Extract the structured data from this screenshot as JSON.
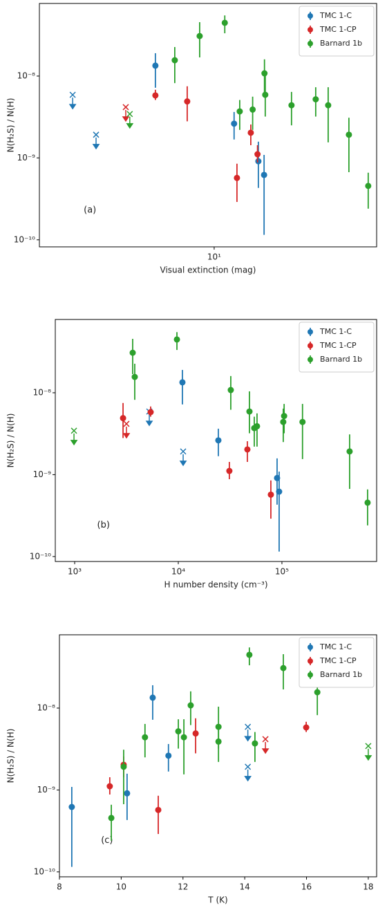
{
  "chart_data": [
    {
      "type": "scatter",
      "annotation": "(a)",
      "xlabel": "Visual extinction (mag)",
      "ylabel": "N(H₂S) / N(H)",
      "xscale": "log",
      "yscale": "log",
      "xlim": [
        1,
        85
      ],
      "ylim": [
        8.2e-11,
        7.7e-08
      ],
      "xticks": [
        {
          "value": 10,
          "label": "10¹"
        }
      ],
      "yticks": [
        {
          "value": 1e-10,
          "label": "10⁻¹⁰"
        },
        {
          "value": 1e-09,
          "label": "10⁻⁹"
        },
        {
          "value": 1e-08,
          "label": "10⁻⁸"
        }
      ],
      "legend": "upper right",
      "series": [
        {
          "name": "TMC 1-C",
          "color": "#1f77b4",
          "x": [
            1.55,
            2.11,
            4.61,
            13.0,
            17.9,
            19.3
          ],
          "values": [
            5.9e-09,
            1.92e-09,
            1.34e-08,
            2.62e-09,
            9.1e-10,
            6.2e-10
          ],
          "low": [
            null,
            null,
            7.2e-09,
            1.68e-09,
            4.3e-10,
            1.15e-10
          ],
          "high": [
            null,
            null,
            1.9e-08,
            3.64e-09,
            1.58e-09,
            1.09e-09
          ],
          "limit": [
            true,
            true,
            false,
            false,
            false,
            false
          ]
        },
        {
          "name": "TMC 1-CP",
          "color": "#d62728",
          "x": [
            3.12,
            4.61,
            7.01,
            13.5,
            16.2,
            17.7
          ],
          "values": [
            4.17e-09,
            5.8e-09,
            4.9e-09,
            5.7e-10,
            2.03e-09,
            1.11e-09
          ],
          "low": [
            null,
            5.1e-09,
            2.8e-09,
            2.9e-10,
            1.43e-09,
            8.8e-10
          ],
          "high": [
            null,
            6.8e-09,
            7.5e-09,
            8.5e-10,
            2.56e-09,
            1.43e-09
          ],
          "limit": [
            true,
            false,
            false,
            false,
            false,
            false
          ]
        },
        {
          "name": "Barnard 1b",
          "color": "#2ca02c",
          "x": [
            3.29,
            5.95,
            8.26,
            11.5,
            14.0,
            16.6,
            19.4,
            19.6,
            27.7,
            38.1,
            44.9,
            59.0,
            76.1
          ],
          "values": [
            3.44e-09,
            1.56e-08,
            3.08e-08,
            4.47e-08,
            3.7e-09,
            3.9e-09,
            1.08e-08,
            5.9e-09,
            4.4e-09,
            5.2e-09,
            4.4e-09,
            1.92e-09,
            4.55e-10
          ],
          "low": [
            null,
            8.2e-09,
            1.69e-08,
            3.33e-08,
            2.2e-09,
            2.2e-09,
            6.2e-09,
            3.2e-09,
            2.5e-09,
            3.2e-09,
            1.55e-09,
            6.7e-10,
            2.4e-10
          ],
          "high": [
            null,
            2.26e-08,
            4.55e-08,
            5.5e-08,
            5.1e-09,
            5.6e-09,
            1.6e-08,
            1.04e-08,
            6.4e-09,
            7.3e-09,
            7.3e-09,
            3.1e-09,
            6.6e-10
          ],
          "limit": [
            true,
            false,
            false,
            false,
            false,
            false,
            false,
            false,
            false,
            false,
            false,
            false,
            false
          ]
        }
      ]
    },
    {
      "type": "scatter",
      "annotation": "(b)",
      "xlabel": "H number density (cm⁻³)",
      "ylabel": "N(H₂S) / N(H)",
      "xscale": "log",
      "yscale": "log",
      "xlim": [
        650,
        820000
      ],
      "ylim": [
        8.7e-11,
        7.85e-08
      ],
      "xticks": [
        {
          "value": 1000,
          "label": "10³"
        },
        {
          "value": 10000,
          "label": "10⁴"
        },
        {
          "value": 100000,
          "label": "10⁵"
        }
      ],
      "yticks": [
        {
          "value": 1e-10,
          "label": "10⁻¹⁰"
        },
        {
          "value": 1e-09,
          "label": "10⁻⁹"
        },
        {
          "value": 1e-08,
          "label": "10⁻⁸"
        }
      ],
      "legend": "upper right",
      "series": [
        {
          "name": "TMC 1-C",
          "color": "#1f77b4",
          "x": [
            5250,
            11140,
            10960,
            24350,
            89800,
            94000
          ],
          "values": [
            5.9e-09,
            1.92e-09,
            1.34e-08,
            2.62e-09,
            9.1e-10,
            6.2e-10
          ],
          "low": [
            null,
            null,
            7.2e-09,
            1.68e-09,
            4.3e-10,
            1.15e-10
          ],
          "high": [
            null,
            null,
            1.9e-08,
            3.64e-09,
            1.58e-09,
            1.09e-09
          ],
          "limit": [
            true,
            true,
            false,
            false,
            false,
            false
          ]
        },
        {
          "name": "TMC 1-CP",
          "color": "#d62728",
          "x": [
            3160,
            5410,
            2930,
            78200,
            46400,
            31100
          ],
          "values": [
            4.17e-09,
            5.8e-09,
            4.9e-09,
            5.7e-10,
            2.03e-09,
            1.11e-09
          ],
          "low": [
            null,
            5.1e-09,
            2.8e-09,
            2.9e-10,
            1.43e-09,
            8.8e-10
          ],
          "high": [
            null,
            6.8e-09,
            7.5e-09,
            8.5e-10,
            2.56e-09,
            1.43e-09
          ],
          "limit": [
            true,
            false,
            false,
            false,
            false,
            false
          ]
        },
        {
          "name": "Barnard 1b",
          "color": "#2ca02c",
          "x": [
            985,
            3800,
            3630,
            9700,
            54100,
            57500,
            32100,
            48600,
            103000,
            105000,
            158000,
            450000,
            671000
          ],
          "values": [
            3.44e-09,
            1.56e-08,
            3.08e-08,
            4.47e-08,
            3.7e-09,
            3.9e-09,
            1.08e-08,
            5.9e-09,
            4.4e-09,
            5.2e-09,
            4.4e-09,
            1.92e-09,
            4.55e-10
          ],
          "low": [
            null,
            8.2e-09,
            1.69e-08,
            3.33e-08,
            2.2e-09,
            2.2e-09,
            6.2e-09,
            3.2e-09,
            2.5e-09,
            3.2e-09,
            1.55e-09,
            6.7e-10,
            2.4e-10
          ],
          "high": [
            null,
            2.26e-08,
            4.55e-08,
            5.5e-08,
            5.1e-09,
            5.6e-09,
            1.6e-08,
            1.04e-08,
            6.4e-09,
            7.3e-09,
            7.3e-09,
            3.1e-09,
            6.6e-10
          ],
          "limit": [
            true,
            false,
            false,
            false,
            false,
            false,
            false,
            false,
            false,
            false,
            false,
            false,
            false
          ]
        }
      ]
    },
    {
      "type": "scatter",
      "annotation": "(c)",
      "xlabel": "T (K)",
      "ylabel": "N(H₂S) / N(H)",
      "xscale": "linear",
      "yscale": "log",
      "xlim": [
        8,
        18.27
      ],
      "ylim": [
        8.7e-11,
        7.85e-08
      ],
      "xticks": [
        8,
        10,
        12,
        14,
        16,
        18
      ],
      "yticks": [
        {
          "value": 1e-10,
          "label": "10⁻¹⁰"
        },
        {
          "value": 1e-09,
          "label": "10⁻⁹"
        },
        {
          "value": 1e-08,
          "label": "10⁻⁸"
        }
      ],
      "legend": "upper right",
      "series": [
        {
          "name": "TMC 1-C",
          "color": "#1f77b4",
          "x": [
            14.1,
            14.1,
            11.02,
            11.53,
            10.19,
            8.4
          ],
          "values": [
            5.9e-09,
            1.92e-09,
            1.34e-08,
            2.62e-09,
            9.1e-10,
            6.2e-10
          ],
          "low": [
            null,
            null,
            7.2e-09,
            1.68e-09,
            4.3e-10,
            1.15e-10
          ],
          "high": [
            null,
            null,
            1.9e-08,
            3.64e-09,
            1.58e-09,
            1.09e-09
          ],
          "limit": [
            true,
            true,
            false,
            false,
            false,
            false
          ]
        },
        {
          "name": "TMC 1-CP",
          "color": "#d62728",
          "x": [
            14.67,
            15.99,
            12.41,
            11.2,
            10.08,
            9.63
          ],
          "values": [
            4.17e-09,
            5.8e-09,
            4.9e-09,
            5.7e-10,
            2.03e-09,
            1.11e-09
          ],
          "low": [
            null,
            5.1e-09,
            2.8e-09,
            2.9e-10,
            1.43e-09,
            8.8e-10
          ],
          "high": [
            null,
            6.8e-09,
            7.5e-09,
            8.5e-10,
            2.56e-09,
            1.43e-09
          ],
          "limit": [
            true,
            false,
            false,
            false,
            false,
            false
          ]
        },
        {
          "name": "Barnard 1b",
          "color": "#2ca02c",
          "x": [
            18.0,
            16.35,
            15.25,
            14.15,
            14.33,
            13.15,
            12.25,
            13.15,
            10.77,
            11.85,
            12.03,
            10.08,
            9.68
          ],
          "values": [
            3.44e-09,
            1.56e-08,
            3.08e-08,
            4.47e-08,
            3.7e-09,
            3.9e-09,
            1.08e-08,
            5.9e-09,
            4.4e-09,
            5.2e-09,
            4.4e-09,
            1.92e-09,
            4.55e-10
          ],
          "low": [
            null,
            8.2e-09,
            1.69e-08,
            3.33e-08,
            2.2e-09,
            2.2e-09,
            6.2e-09,
            3.2e-09,
            2.5e-09,
            3.2e-09,
            1.55e-09,
            6.7e-10,
            2.4e-10
          ],
          "high": [
            null,
            2.26e-08,
            4.55e-08,
            5.5e-08,
            5.1e-09,
            5.6e-09,
            1.6e-08,
            1.04e-08,
            6.4e-09,
            7.3e-09,
            7.3e-09,
            3.1e-09,
            6.6e-10
          ],
          "limit": [
            true,
            false,
            false,
            false,
            false,
            false,
            false,
            false,
            false,
            false,
            false,
            false,
            false
          ]
        }
      ]
    }
  ]
}
